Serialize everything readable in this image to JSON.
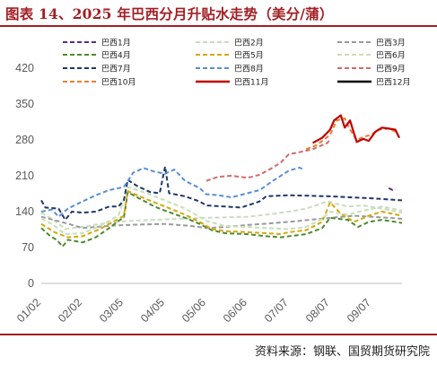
{
  "title": "图表 14、2025 年巴西分月升贴水走势（美分/蒲）",
  "source": "资料来源：钢联、国贸期货研究院",
  "chart_data": {
    "type": "line",
    "ylim": [
      0,
      420
    ],
    "yticks": [
      0,
      70,
      140,
      210,
      280,
      350,
      420
    ],
    "xlim": [
      "2025-01-02",
      "2025-09-30"
    ],
    "xticks": [
      {
        "date": "2025-01-02",
        "label": "01/02"
      },
      {
        "date": "2025-02-02",
        "label": "02/02"
      },
      {
        "date": "2025-03-05",
        "label": "03/05"
      },
      {
        "date": "2025-04-05",
        "label": "04/05"
      },
      {
        "date": "2025-05-06",
        "label": "05/06"
      },
      {
        "date": "2025-06-06",
        "label": "06/06"
      },
      {
        "date": "2025-07-07",
        "label": "07/07"
      },
      {
        "date": "2025-08-07",
        "label": "08/07"
      },
      {
        "date": "2025-09-07",
        "label": "09/07"
      }
    ],
    "grid": false,
    "legend_position": "top",
    "series": [
      {
        "name": "巴西1月",
        "color": "#5b2c8f",
        "dash": "5,3",
        "width": 2,
        "points": [
          [
            "2025-09-20",
            186
          ],
          [
            "2025-09-23",
            182
          ],
          [
            "2025-09-25",
            184
          ]
        ]
      },
      {
        "name": "巴西2月",
        "color": "#c9dcc3",
        "dash": "5,3",
        "width": 2,
        "points": [
          [
            "2025-01-02",
            138
          ],
          [
            "2025-01-10",
            126
          ],
          [
            "2025-01-20",
            106
          ],
          [
            "2025-02-01",
            110
          ],
          [
            "2025-02-15",
            116
          ],
          [
            "2025-03-01",
            120
          ],
          [
            "2025-03-10",
            122
          ],
          [
            "2025-04-05",
            125
          ],
          [
            "2025-05-06",
            128
          ],
          [
            "2025-06-06",
            130
          ],
          [
            "2025-06-20",
            134
          ],
          [
            "2025-07-07",
            140
          ],
          [
            "2025-07-20",
            146
          ],
          [
            "2025-08-05",
            160
          ],
          [
            "2025-08-20",
            150
          ],
          [
            "2025-09-01",
            152
          ],
          [
            "2025-09-15",
            146
          ],
          [
            "2025-09-30",
            138
          ]
        ]
      },
      {
        "name": "巴西3月",
        "color": "#9a9a9a",
        "dash": "5,3",
        "width": 2,
        "points": [
          [
            "2025-01-02",
            130
          ],
          [
            "2025-01-20",
            118
          ],
          [
            "2025-02-02",
            108
          ],
          [
            "2025-02-20",
            112
          ],
          [
            "2025-03-05",
            114
          ],
          [
            "2025-04-05",
            116
          ],
          [
            "2025-04-25",
            112
          ],
          [
            "2025-05-06",
            108
          ],
          [
            "2025-05-20",
            110
          ],
          [
            "2025-06-06",
            114
          ],
          [
            "2025-07-07",
            120
          ],
          [
            "2025-08-07",
            128
          ],
          [
            "2025-08-25",
            132
          ],
          [
            "2025-09-07",
            130
          ],
          [
            "2025-09-20",
            128
          ],
          [
            "2025-09-30",
            126
          ]
        ]
      },
      {
        "name": "巴西4月",
        "color": "#4f8a2f",
        "dash": "5,3",
        "width": 2,
        "points": [
          [
            "2025-01-02",
            108
          ],
          [
            "2025-01-08",
            94
          ],
          [
            "2025-01-14",
            84
          ],
          [
            "2025-01-18",
            72
          ],
          [
            "2025-01-22",
            85
          ],
          [
            "2025-02-02",
            80
          ],
          [
            "2025-02-12",
            90
          ],
          [
            "2025-02-22",
            108
          ],
          [
            "2025-03-01",
            122
          ],
          [
            "2025-03-05",
            128
          ],
          [
            "2025-03-08",
            178
          ],
          [
            "2025-03-15",
            168
          ],
          [
            "2025-03-28",
            150
          ],
          [
            "2025-04-05",
            142
          ],
          [
            "2025-04-20",
            128
          ],
          [
            "2025-05-01",
            116
          ],
          [
            "2025-05-10",
            104
          ],
          [
            "2025-05-20",
            98
          ],
          [
            "2025-06-06",
            96
          ],
          [
            "2025-06-20",
            92
          ],
          [
            "2025-07-01",
            90
          ],
          [
            "2025-07-07",
            92
          ],
          [
            "2025-07-20",
            96
          ],
          [
            "2025-08-01",
            108
          ],
          [
            "2025-08-07",
            128
          ],
          [
            "2025-08-20",
            124
          ],
          [
            "2025-08-28",
            110
          ],
          [
            "2025-09-05",
            120
          ],
          [
            "2025-09-15",
            124
          ],
          [
            "2025-09-30",
            118
          ]
        ]
      },
      {
        "name": "巴西5月",
        "color": "#d3a80c",
        "dash": "5,3",
        "width": 2,
        "points": [
          [
            "2025-01-02",
            116
          ],
          [
            "2025-01-12",
            100
          ],
          [
            "2025-01-22",
            90
          ],
          [
            "2025-02-02",
            92
          ],
          [
            "2025-02-15",
            106
          ],
          [
            "2025-02-25",
            120
          ],
          [
            "2025-03-05",
            132
          ],
          [
            "2025-03-08",
            180
          ],
          [
            "2025-03-15",
            172
          ],
          [
            "2025-03-28",
            158
          ],
          [
            "2025-04-05",
            150
          ],
          [
            "2025-04-20",
            134
          ],
          [
            "2025-05-01",
            120
          ],
          [
            "2025-05-10",
            106
          ],
          [
            "2025-05-20",
            102
          ],
          [
            "2025-06-06",
            100
          ],
          [
            "2025-06-20",
            98
          ],
          [
            "2025-07-01",
            96
          ],
          [
            "2025-07-07",
            100
          ],
          [
            "2025-07-20",
            104
          ],
          [
            "2025-08-01",
            120
          ],
          [
            "2025-08-07",
            158
          ],
          [
            "2025-08-15",
            136
          ],
          [
            "2025-08-25",
            120
          ],
          [
            "2025-09-05",
            132
          ],
          [
            "2025-09-15",
            140
          ],
          [
            "2025-09-30",
            132
          ]
        ]
      },
      {
        "name": "巴西6月",
        "color": "#c6e0b4",
        "dash": "5,3",
        "width": 2,
        "points": [
          [
            "2025-01-02",
            126
          ],
          [
            "2025-01-10",
            116
          ],
          [
            "2025-01-20",
            96
          ],
          [
            "2025-02-02",
            98
          ],
          [
            "2025-02-15",
            112
          ],
          [
            "2025-03-01",
            132
          ],
          [
            "2025-03-08",
            188
          ],
          [
            "2025-03-20",
            178
          ],
          [
            "2025-04-05",
            162
          ],
          [
            "2025-04-20",
            146
          ],
          [
            "2025-05-06",
            122
          ],
          [
            "2025-05-20",
            112
          ],
          [
            "2025-06-06",
            110
          ],
          [
            "2025-06-20",
            108
          ],
          [
            "2025-07-07",
            106
          ],
          [
            "2025-07-20",
            110
          ],
          [
            "2025-08-01",
            126
          ],
          [
            "2025-08-07",
            140
          ],
          [
            "2025-08-20",
            134
          ],
          [
            "2025-09-01",
            142
          ],
          [
            "2025-09-15",
            150
          ],
          [
            "2025-09-30",
            142
          ]
        ]
      },
      {
        "name": "巴西7月",
        "color": "#1f3768",
        "dash": "5,3",
        "width": 2,
        "points": [
          [
            "2025-01-02",
            162
          ],
          [
            "2025-01-05",
            148
          ],
          [
            "2025-01-15",
            146
          ],
          [
            "2025-01-20",
            124
          ],
          [
            "2025-01-25",
            140
          ],
          [
            "2025-02-02",
            138
          ],
          [
            "2025-02-12",
            140
          ],
          [
            "2025-02-22",
            150
          ],
          [
            "2025-03-01",
            150
          ],
          [
            "2025-03-05",
            162
          ],
          [
            "2025-03-08",
            202
          ],
          [
            "2025-03-15",
            190
          ],
          [
            "2025-03-25",
            178
          ],
          [
            "2025-04-01",
            176
          ],
          [
            "2025-04-05",
            228
          ],
          [
            "2025-04-08",
            176
          ],
          [
            "2025-04-20",
            170
          ],
          [
            "2025-05-01",
            160
          ],
          [
            "2025-05-06",
            152
          ],
          [
            "2025-05-20",
            150
          ],
          [
            "2025-06-01",
            148
          ],
          [
            "2025-06-06",
            152
          ],
          [
            "2025-06-15",
            160
          ],
          [
            "2025-06-20",
            170
          ],
          [
            "2025-07-07",
            172
          ],
          [
            "2025-08-07",
            170
          ],
          [
            "2025-09-07",
            166
          ],
          [
            "2025-09-30",
            162
          ]
        ]
      },
      {
        "name": "巴西8月",
        "color": "#5b8ed6",
        "dash": "5,3",
        "width": 2,
        "points": [
          [
            "2025-01-02",
            140
          ],
          [
            "2025-01-10",
            144
          ],
          [
            "2025-01-15",
            130
          ],
          [
            "2025-01-22",
            146
          ],
          [
            "2025-02-02",
            160
          ],
          [
            "2025-02-12",
            172
          ],
          [
            "2025-02-22",
            182
          ],
          [
            "2025-03-05",
            188
          ],
          [
            "2025-03-12",
            216
          ],
          [
            "2025-03-20",
            225
          ],
          [
            "2025-03-28",
            218
          ],
          [
            "2025-04-05",
            214
          ],
          [
            "2025-04-12",
            222
          ],
          [
            "2025-04-20",
            200
          ],
          [
            "2025-05-01",
            186
          ],
          [
            "2025-05-06",
            174
          ],
          [
            "2025-05-15",
            172
          ],
          [
            "2025-05-25",
            168
          ],
          [
            "2025-06-06",
            176
          ],
          [
            "2025-06-15",
            182
          ],
          [
            "2025-06-25",
            200
          ],
          [
            "2025-07-01",
            210
          ],
          [
            "2025-07-07",
            220
          ],
          [
            "2025-07-15",
            226
          ],
          [
            "2025-07-18",
            222
          ]
        ]
      },
      {
        "name": "巴西9月",
        "color": "#d46a6a",
        "dash": "5,3",
        "width": 2,
        "points": [
          [
            "2025-05-06",
            200
          ],
          [
            "2025-05-15",
            208
          ],
          [
            "2025-05-25",
            210
          ],
          [
            "2025-06-06",
            206
          ],
          [
            "2025-06-15",
            212
          ],
          [
            "2025-06-25",
            226
          ],
          [
            "2025-07-01",
            236
          ],
          [
            "2025-07-07",
            252
          ],
          [
            "2025-07-15",
            256
          ],
          [
            "2025-07-25",
            262
          ],
          [
            "2025-08-05",
            274
          ],
          [
            "2025-08-07",
            282
          ]
        ]
      },
      {
        "name": "巴西10月",
        "color": "#ed7d31",
        "dash": "5,3",
        "width": 2,
        "points": [
          [
            "2025-07-20",
            262
          ],
          [
            "2025-07-28",
            270
          ],
          [
            "2025-08-07",
            290
          ],
          [
            "2025-08-12",
            318
          ],
          [
            "2025-08-18",
            322
          ],
          [
            "2025-08-22",
            300
          ],
          [
            "2025-08-27",
            280
          ],
          [
            "2025-09-01",
            286
          ],
          [
            "2025-09-07",
            290
          ],
          [
            "2025-09-12",
            300
          ],
          [
            "2025-09-20",
            302
          ],
          [
            "2025-09-27",
            294
          ]
        ]
      },
      {
        "name": "巴西11月",
        "color": "#c00000",
        "dash": "",
        "width": 2.2,
        "points": [
          [
            "2025-07-25",
            274
          ],
          [
            "2025-08-01",
            284
          ],
          [
            "2025-08-07",
            300
          ],
          [
            "2025-08-10",
            318
          ],
          [
            "2025-08-15",
            328
          ],
          [
            "2025-08-18",
            304
          ],
          [
            "2025-08-22",
            318
          ],
          [
            "2025-08-25",
            292
          ],
          [
            "2025-08-27",
            276
          ],
          [
            "2025-09-01",
            282
          ],
          [
            "2025-09-05",
            278
          ],
          [
            "2025-09-10",
            296
          ],
          [
            "2025-09-15",
            304
          ],
          [
            "2025-09-20",
            302
          ],
          [
            "2025-09-25",
            300
          ],
          [
            "2025-09-28",
            284
          ]
        ]
      },
      {
        "name": "巴西12月",
        "color": "#000000",
        "dash": "",
        "width": 2,
        "points": []
      }
    ]
  }
}
